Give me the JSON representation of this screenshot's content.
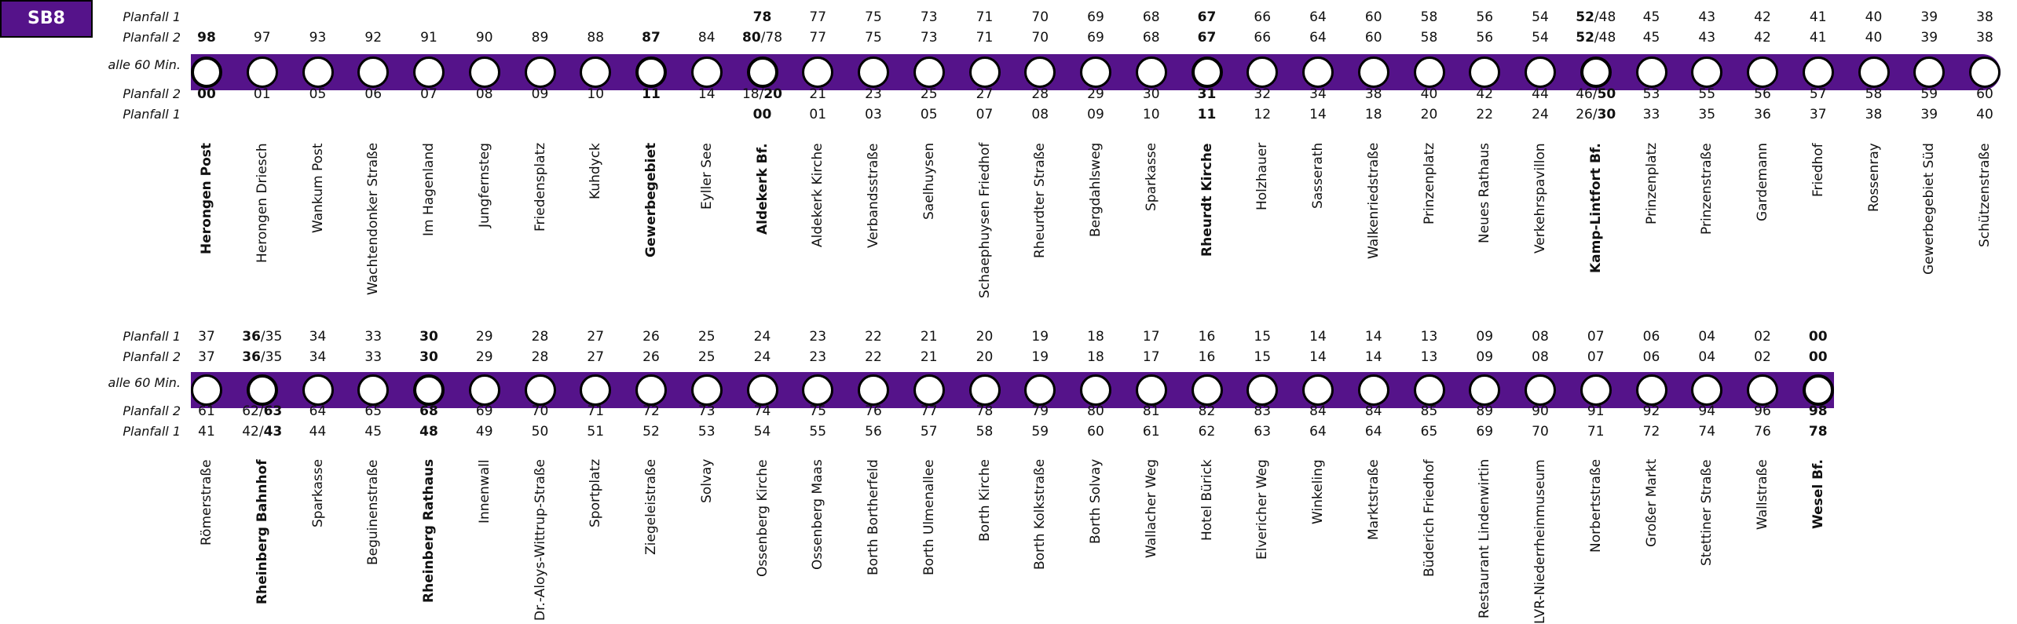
{
  "line": "SB8",
  "labels": {
    "planfall1": "Planfall 1",
    "planfall2": "Planfall 2",
    "interval": "alle 60 Min."
  },
  "sections": [
    {
      "stops": [
        {
          "name": "Herongen Post",
          "bold": true,
          "top1": "",
          "top2": "**98**",
          "bot2": "**00**",
          "bot1": ""
        },
        {
          "name": "Herongen Driesch",
          "top1": "",
          "top2": "97",
          "bot2": "01",
          "bot1": ""
        },
        {
          "name": "Wankum Post",
          "top1": "",
          "top2": "93",
          "bot2": "05",
          "bot1": ""
        },
        {
          "name": "Wachtendonker Straße",
          "top1": "",
          "top2": "92",
          "bot2": "06",
          "bot1": ""
        },
        {
          "name": "Im Hagenland",
          "top1": "",
          "top2": "91",
          "bot2": "07",
          "bot1": ""
        },
        {
          "name": "Jungfernsteg",
          "top1": "",
          "top2": "90",
          "bot2": "08",
          "bot1": ""
        },
        {
          "name": "Friedensplatz",
          "top1": "",
          "top2": "89",
          "bot2": "09",
          "bot1": ""
        },
        {
          "name": "Kuhdyck",
          "top1": "",
          "top2": "88",
          "bot2": "10",
          "bot1": ""
        },
        {
          "name": "Gewerbegebiet",
          "bold": true,
          "top1": "",
          "top2": "**87**",
          "bot2": "**11**",
          "bot1": ""
        },
        {
          "name": "Eyller See",
          "top1": "",
          "top2": "84",
          "bot2": "14",
          "bot1": ""
        },
        {
          "name": "Aldekerk Bf.",
          "bold": true,
          "top1": "**78**",
          "top2": "**80**/78",
          "bot2": "18/**20**",
          "bot1": "**00**"
        },
        {
          "name": "Aldekerk Kirche",
          "top1": "77",
          "top2": "77",
          "bot2": "21",
          "bot1": "01"
        },
        {
          "name": "Verbandsstraße",
          "top1": "75",
          "top2": "75",
          "bot2": "23",
          "bot1": "03"
        },
        {
          "name": "Saelhuysen",
          "top1": "73",
          "top2": "73",
          "bot2": "25",
          "bot1": "05"
        },
        {
          "name": "Schaephuysen Friedhof",
          "top1": "71",
          "top2": "71",
          "bot2": "27",
          "bot1": "07"
        },
        {
          "name": "Rheurdter Straße",
          "top1": "70",
          "top2": "70",
          "bot2": "28",
          "bot1": "08"
        },
        {
          "name": "Bergdahlsweg",
          "top1": "69",
          "top2": "69",
          "bot2": "29",
          "bot1": "09"
        },
        {
          "name": "Sparkasse",
          "top1": "68",
          "top2": "68",
          "bot2": "30",
          "bot1": "10"
        },
        {
          "name": "Rheurdt Kirche",
          "bold": true,
          "top1": "**67**",
          "top2": "**67**",
          "bot2": "**31**",
          "bot1": "**11**"
        },
        {
          "name": "Holzhauer",
          "top1": "66",
          "top2": "66",
          "bot2": "32",
          "bot1": "12"
        },
        {
          "name": "Sasserath",
          "top1": "64",
          "top2": "64",
          "bot2": "34",
          "bot1": "14"
        },
        {
          "name": "Walkenriedstraße",
          "top1": "60",
          "top2": "60",
          "bot2": "38",
          "bot1": "18"
        },
        {
          "name": "Prinzenplatz",
          "top1": "58",
          "top2": "58",
          "bot2": "40",
          "bot1": "20"
        },
        {
          "name": "Neues Rathaus",
          "top1": "56",
          "top2": "56",
          "bot2": "42",
          "bot1": "22"
        },
        {
          "name": "Verkehrspavillon",
          "top1": "54",
          "top2": "54",
          "bot2": "44",
          "bot1": "24"
        },
        {
          "name": "Kamp-Lintfort Bf.",
          "bold": true,
          "top1": "**52**/48",
          "top2": "**52**/48",
          "bot2": "46/**50**",
          "bot1": "26/**30**"
        },
        {
          "name": "Prinzenplatz",
          "top1": "45",
          "top2": "45",
          "bot2": "53",
          "bot1": "33"
        },
        {
          "name": "Prinzenstraße",
          "top1": "43",
          "top2": "43",
          "bot2": "55",
          "bot1": "35"
        },
        {
          "name": "Gardemann",
          "top1": "42",
          "top2": "42",
          "bot2": "56",
          "bot1": "36"
        },
        {
          "name": "Friedhof",
          "top1": "41",
          "top2": "41",
          "bot2": "57",
          "bot1": "37"
        },
        {
          "name": "Rossenray",
          "top1": "40",
          "top2": "40",
          "bot2": "58",
          "bot1": "38"
        },
        {
          "name": "Gewerbegebiet Süd",
          "top1": "39",
          "top2": "39",
          "bot2": "59",
          "bot1": "39"
        },
        {
          "name": "Schützenstraße",
          "top1": "38",
          "top2": "38",
          "bot2": "60",
          "bot1": "40"
        }
      ]
    },
    {
      "stops": [
        {
          "name": "Römerstraße",
          "top1": "37",
          "top2": "37",
          "bot2": "61",
          "bot1": "41"
        },
        {
          "name": "Rheinberg Bahnhof",
          "bold": true,
          "top1": "**36**/35",
          "top2": "**36**/35",
          "bot2": "62/**63**",
          "bot1": "42/**43**"
        },
        {
          "name": "Sparkasse",
          "top1": "34",
          "top2": "34",
          "bot2": "64",
          "bot1": "44"
        },
        {
          "name": "Beguinenstraße",
          "top1": "33",
          "top2": "33",
          "bot2": "65",
          "bot1": "45"
        },
        {
          "name": "Rheinberg Rathaus",
          "bold": true,
          "top1": "**30**",
          "top2": "**30**",
          "bot2": "**68**",
          "bot1": "**48**"
        },
        {
          "name": "Innenwall",
          "top1": "29",
          "top2": "29",
          "bot2": "69",
          "bot1": "49"
        },
        {
          "name": "Dr.-Aloys-Wittrup-Straße",
          "top1": "28",
          "top2": "28",
          "bot2": "70",
          "bot1": "50"
        },
        {
          "name": "Sportplatz",
          "top1": "27",
          "top2": "27",
          "bot2": "71",
          "bot1": "51"
        },
        {
          "name": "Ziegeleistraße",
          "top1": "26",
          "top2": "26",
          "bot2": "72",
          "bot1": "52"
        },
        {
          "name": "Solvay",
          "top1": "25",
          "top2": "25",
          "bot2": "73",
          "bot1": "53"
        },
        {
          "name": "Ossenberg Kirche",
          "top1": "24",
          "top2": "24",
          "bot2": "74",
          "bot1": "54"
        },
        {
          "name": "Ossenberg Maas",
          "top1": "23",
          "top2": "23",
          "bot2": "75",
          "bot1": "55"
        },
        {
          "name": "Borth Bortherfeld",
          "top1": "22",
          "top2": "22",
          "bot2": "76",
          "bot1": "56"
        },
        {
          "name": "Borth Ulmenallee",
          "top1": "21",
          "top2": "21",
          "bot2": "77",
          "bot1": "57"
        },
        {
          "name": "Borth Kirche",
          "top1": "20",
          "top2": "20",
          "bot2": "78",
          "bot1": "58"
        },
        {
          "name": "Borth Kolkstraße",
          "top1": "19",
          "top2": "19",
          "bot2": "79",
          "bot1": "59"
        },
        {
          "name": "Borth Solvay",
          "top1": "18",
          "top2": "18",
          "bot2": "80",
          "bot1": "60"
        },
        {
          "name": "Wallacher Weg",
          "top1": "17",
          "top2": "17",
          "bot2": "81",
          "bot1": "61"
        },
        {
          "name": "Hotel Bürick",
          "top1": "16",
          "top2": "16",
          "bot2": "82",
          "bot1": "62"
        },
        {
          "name": "Elvericher Weg",
          "top1": "15",
          "top2": "15",
          "bot2": "83",
          "bot1": "63"
        },
        {
          "name": "Winkeling",
          "top1": "14",
          "top2": "14",
          "bot2": "84",
          "bot1": "64"
        },
        {
          "name": "Marktstraße",
          "top1": "14",
          "top2": "14",
          "bot2": "84",
          "bot1": "64"
        },
        {
          "name": "Büderich Friedhof",
          "top1": "13",
          "top2": "13",
          "bot2": "85",
          "bot1": "65"
        },
        {
          "name": "Restaurant Lindenwirtin",
          "top1": "09",
          "top2": "09",
          "bot2": "89",
          "bot1": "69"
        },
        {
          "name": "LVR-Niederrheinmuseum",
          "top1": "08",
          "top2": "08",
          "bot2": "90",
          "bot1": "70"
        },
        {
          "name": "Norbertstraße",
          "top1": "07",
          "top2": "07",
          "bot2": "91",
          "bot1": "71"
        },
        {
          "name": "Großer Markt",
          "top1": "06",
          "top2": "06",
          "bot2": "92",
          "bot1": "72"
        },
        {
          "name": "Stettiner Straße",
          "top1": "04",
          "top2": "04",
          "bot2": "94",
          "bot1": "74"
        },
        {
          "name": "Wallstraße",
          "top1": "02",
          "top2": "02",
          "bot2": "96",
          "bot1": "76"
        },
        {
          "name": "Wesel Bf.",
          "bold": true,
          "top1": "**00**",
          "top2": "**00**",
          "bot2": "**98**",
          "bot1": "**78**"
        }
      ]
    }
  ],
  "colors": {
    "line": "#55138a"
  }
}
